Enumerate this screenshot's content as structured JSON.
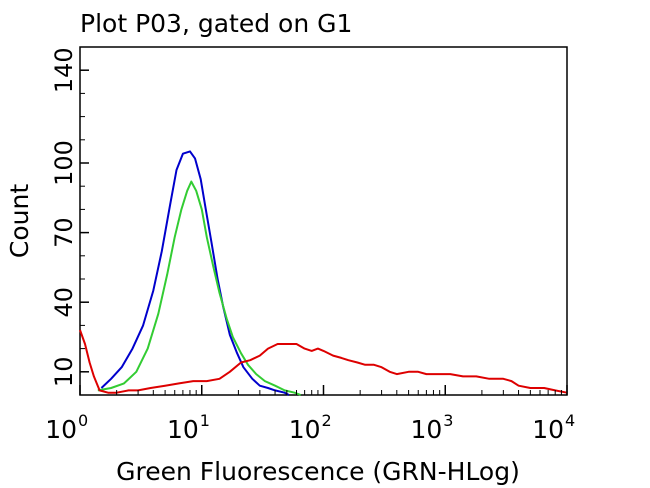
{
  "chart_data": {
    "type": "line",
    "title": "Plot P03, gated on G1",
    "xlabel": "Green Fluorescence (GRN-HLog)",
    "ylabel": "Count",
    "x_scale": "log",
    "xlim": [
      1,
      10000
    ],
    "ylim": [
      0,
      150
    ],
    "x_ticks": [
      {
        "base": "10",
        "exp": "0",
        "value": 1
      },
      {
        "base": "10",
        "exp": "1",
        "value": 10
      },
      {
        "base": "10",
        "exp": "2",
        "value": 100
      },
      {
        "base": "10",
        "exp": "3",
        "value": 1000
      },
      {
        "base": "10",
        "exp": "4",
        "value": 10000
      }
    ],
    "y_ticks": [
      {
        "label": "10",
        "value": 10
      },
      {
        "label": "40",
        "value": 40
      },
      {
        "label": "70",
        "value": 70
      },
      {
        "label": "100",
        "value": 100
      },
      {
        "label": "140",
        "value": 140
      }
    ],
    "grid": false,
    "legend": "none",
    "series": [
      {
        "color": "#0000cc",
        "points": [
          [
            1.5,
            3
          ],
          [
            1.8,
            7
          ],
          [
            2.2,
            12
          ],
          [
            2.7,
            20
          ],
          [
            3.3,
            30
          ],
          [
            4,
            45
          ],
          [
            4.7,
            62
          ],
          [
            5.5,
            82
          ],
          [
            6.2,
            97
          ],
          [
            7,
            104
          ],
          [
            8,
            105
          ],
          [
            8.8,
            102
          ],
          [
            9.8,
            93
          ],
          [
            10.8,
            80
          ],
          [
            12,
            66
          ],
          [
            13.5,
            50
          ],
          [
            15,
            38
          ],
          [
            17,
            26
          ],
          [
            19.5,
            18
          ],
          [
            22,
            12
          ],
          [
            26,
            7
          ],
          [
            30,
            4
          ],
          [
            35,
            3
          ],
          [
            40,
            2
          ],
          [
            48,
            1
          ],
          [
            52,
            0
          ]
        ]
      },
      {
        "color": "#33cc33",
        "points": [
          [
            1.4,
            2
          ],
          [
            1.8,
            3
          ],
          [
            2.3,
            5
          ],
          [
            2.9,
            10
          ],
          [
            3.6,
            20
          ],
          [
            4.4,
            35
          ],
          [
            5.2,
            52
          ],
          [
            6,
            68
          ],
          [
            6.8,
            80
          ],
          [
            7.6,
            88
          ],
          [
            8.2,
            92
          ],
          [
            9,
            88
          ],
          [
            10,
            80
          ],
          [
            11,
            68
          ],
          [
            12.5,
            55
          ],
          [
            14,
            44
          ],
          [
            16,
            33
          ],
          [
            18,
            25
          ],
          [
            21,
            18
          ],
          [
            24,
            13
          ],
          [
            28,
            9
          ],
          [
            33,
            6
          ],
          [
            40,
            4
          ],
          [
            48,
            2
          ],
          [
            58,
            1
          ],
          [
            65,
            0
          ]
        ]
      },
      {
        "color": "#dd0000",
        "points": [
          [
            1,
            28
          ],
          [
            1.1,
            22
          ],
          [
            1.2,
            14
          ],
          [
            1.3,
            8
          ],
          [
            1.45,
            2
          ],
          [
            1.7,
            1
          ],
          [
            2,
            1
          ],
          [
            2.5,
            2
          ],
          [
            3,
            2
          ],
          [
            3.8,
            3
          ],
          [
            5,
            4
          ],
          [
            6.5,
            5
          ],
          [
            8.5,
            6
          ],
          [
            11,
            6
          ],
          [
            14,
            7
          ],
          [
            17,
            10
          ],
          [
            21,
            14
          ],
          [
            25,
            15
          ],
          [
            30,
            17
          ],
          [
            35,
            20
          ],
          [
            42,
            22
          ],
          [
            50,
            22
          ],
          [
            60,
            22
          ],
          [
            70,
            20
          ],
          [
            80,
            19
          ],
          [
            90,
            20
          ],
          [
            100,
            19
          ],
          [
            120,
            17
          ],
          [
            140,
            16
          ],
          [
            160,
            15
          ],
          [
            190,
            14
          ],
          [
            220,
            13
          ],
          [
            260,
            13
          ],
          [
            300,
            12
          ],
          [
            350,
            10
          ],
          [
            400,
            9
          ],
          [
            500,
            10
          ],
          [
            600,
            10
          ],
          [
            700,
            9
          ],
          [
            900,
            9
          ],
          [
            1100,
            9
          ],
          [
            1400,
            8
          ],
          [
            1800,
            8
          ],
          [
            2300,
            7
          ],
          [
            3000,
            7
          ],
          [
            3500,
            6
          ],
          [
            4000,
            4
          ],
          [
            5000,
            3
          ],
          [
            6500,
            3
          ],
          [
            8000,
            2
          ],
          [
            10000,
            1
          ]
        ]
      }
    ]
  }
}
